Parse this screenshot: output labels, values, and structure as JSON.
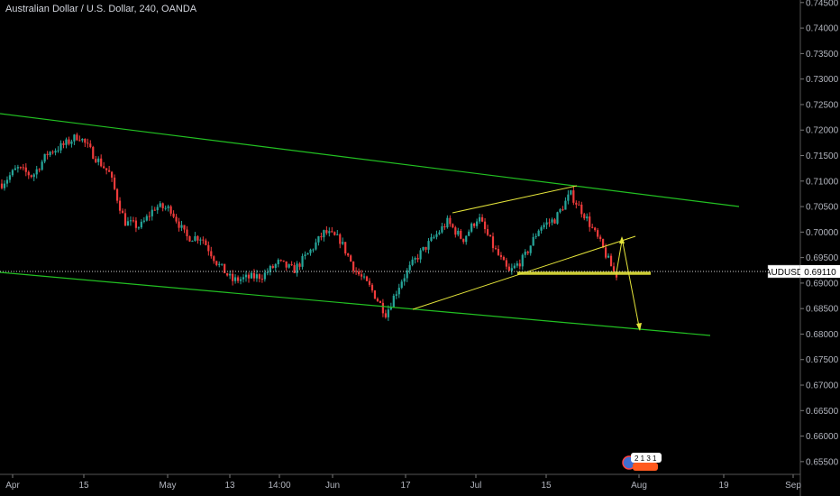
{
  "header": {
    "title": "Australian Dollar / U.S. Dollar, 240, OANDA"
  },
  "colors": {
    "background": "#000000",
    "up_candle": "#26a69a",
    "down_candle": "#ef3b3b",
    "channel": "#22c022",
    "wedge": "#e4e43a",
    "axis_text": "#b2b5be"
  },
  "chart_data": {
    "type": "candlestick",
    "title": "Australian Dollar / U.S. Dollar, 240, OANDA",
    "symbol": "AUDUSD",
    "last_price": "0.69110",
    "y_ticks": [
      "0.74500",
      "0.74000",
      "0.73500",
      "0.73000",
      "0.72500",
      "0.72000",
      "0.71500",
      "0.71000",
      "0.70500",
      "0.70000",
      "0.69500",
      "0.69000",
      "0.68500",
      "0.68000",
      "0.67500",
      "0.67000",
      "0.66500",
      "0.66000",
      "0.65500"
    ],
    "ylim": [
      0.6525,
      0.7455
    ],
    "x_ticks": [
      "Apr",
      "15",
      "May",
      "13",
      "14:00",
      "Jun",
      "17",
      "Jul",
      "15",
      "Aug",
      "19",
      "Sep"
    ],
    "close_path": [
      [
        "Apr 01",
        0.7095
      ],
      [
        "Apr 05",
        0.7125
      ],
      [
        "Apr 09",
        0.711
      ],
      [
        "Apr 12",
        0.7155
      ],
      [
        "Apr 16",
        0.717
      ],
      [
        "Apr 18",
        0.719
      ],
      [
        "Apr 21",
        0.715
      ],
      [
        "Apr 24",
        0.7115
      ],
      [
        "Apr 27",
        0.702
      ],
      [
        "Apr 30",
        0.701
      ],
      [
        "May 03",
        0.705
      ],
      [
        "May 05",
        0.7045
      ],
      [
        "May 08",
        0.699
      ],
      [
        "May 11",
        0.699
      ],
      [
        "May 14",
        0.694
      ],
      [
        "May 17",
        0.6905
      ],
      [
        "May 21",
        0.691
      ],
      [
        "May 24",
        0.6915
      ],
      [
        "May 27",
        0.694
      ],
      [
        "May 30",
        0.6925
      ],
      [
        "Jun 03",
        0.696
      ],
      [
        "Jun 06",
        0.7
      ],
      [
        "Jun 09",
        0.6985
      ],
      [
        "Jun 12",
        0.6925
      ],
      [
        "Jun 15",
        0.689
      ],
      [
        "Jun 18",
        0.684
      ],
      [
        "Jun 21",
        0.6905
      ],
      [
        "Jun 24",
        0.695
      ],
      [
        "Jun 28",
        0.6985
      ],
      [
        "Jul 01",
        0.702
      ],
      [
        "Jul 04",
        0.6985
      ],
      [
        "Jul 07",
        0.703
      ],
      [
        "Jul 10",
        0.697
      ],
      [
        "Jul 12",
        0.692
      ],
      [
        "Jul 15",
        0.695
      ],
      [
        "Jul 18",
        0.701
      ],
      [
        "Jul 21",
        0.7025
      ],
      [
        "Jul 24",
        0.7075
      ],
      [
        "Jul 27",
        0.703
      ],
      [
        "Jul 30",
        0.6975
      ],
      [
        "Aug 01",
        0.6911
      ]
    ]
  }
}
